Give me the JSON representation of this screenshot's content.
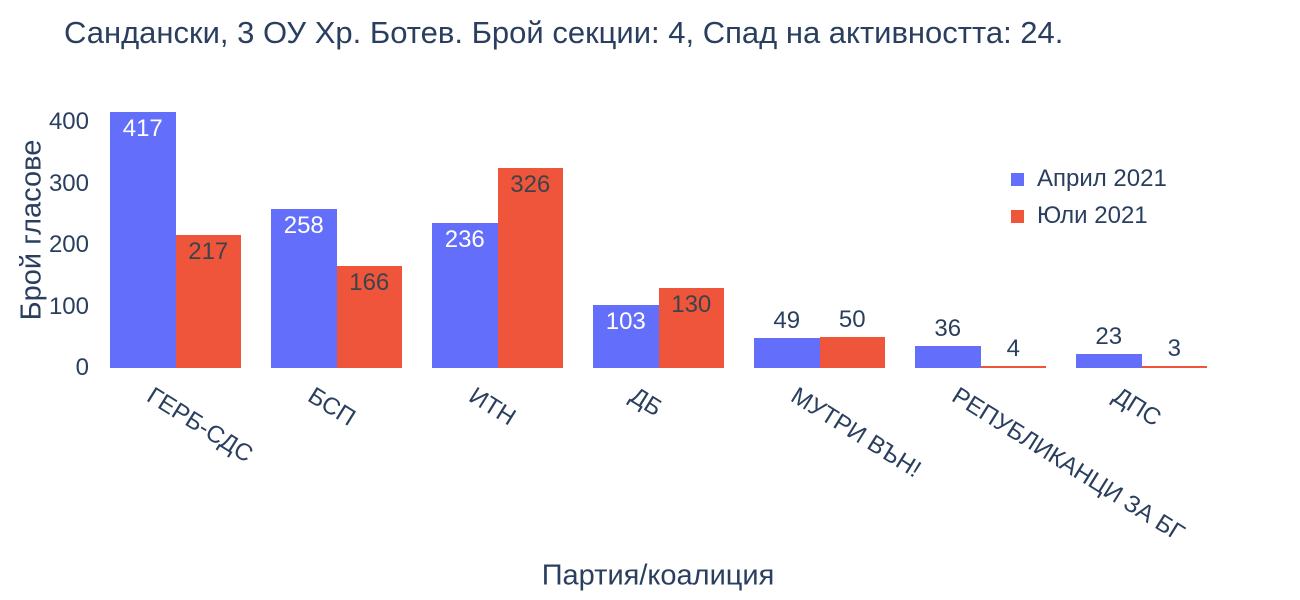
{
  "chart_data": {
    "type": "bar",
    "title": "Сандански, 3 ОУ Хр. Ботев. Брой секции: 4,  Спад на активността: 24.",
    "xlabel": "Партия/коалиция",
    "ylabel": "Брой гласове",
    "categories": [
      "ГЕРБ-СДС",
      "БСП",
      "ИТН",
      "ДБ",
      "МУТРИ ВЪН!",
      "РЕПУБЛИКАНЦИ ЗА БГ",
      "ДПС"
    ],
    "series": [
      {
        "name": "Април 2021",
        "color": "#636EFA",
        "inside_label_color": "#ffffff",
        "values": [
          417,
          258,
          236,
          103,
          49,
          36,
          23
        ]
      },
      {
        "name": "Юли 2021",
        "color": "#EF553B",
        "inside_label_color": "#3d434b",
        "values": [
          217,
          166,
          326,
          130,
          50,
          4,
          3
        ]
      }
    ],
    "yticks": [
      0,
      100,
      200,
      300,
      400
    ],
    "ylim": [
      0,
      430
    ],
    "grid": false,
    "legend_position": "top-right-inside",
    "text_color": "#2a3f5f",
    "background_color": "#ffffff"
  }
}
